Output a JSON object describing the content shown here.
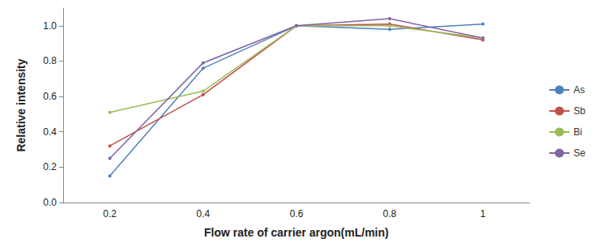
{
  "chart_data": {
    "type": "line",
    "x_label": "Flow rate of carrier argon(mL/min)",
    "y_label": "Relative intensity",
    "categories": [
      "0.2",
      "0.4",
      "0.6",
      "0.8",
      "1"
    ],
    "series": [
      {
        "name": "As",
        "color": "#4f81bd",
        "values": [
          0.15,
          0.76,
          1.0,
          0.98,
          1.01
        ]
      },
      {
        "name": "Sb",
        "color": "#c0504d",
        "values": [
          0.32,
          0.61,
          1.0,
          1.01,
          0.92
        ]
      },
      {
        "name": "Bi",
        "color": "#9bbb59",
        "values": [
          0.51,
          0.63,
          1.0,
          1.0,
          0.93
        ]
      },
      {
        "name": "Se",
        "color": "#8064a2",
        "values": [
          0.25,
          0.79,
          1.0,
          1.04,
          0.93
        ]
      }
    ],
    "ylim": [
      0,
      1.1
    ],
    "yticks": [
      {
        "value": 0,
        "label": "0.0"
      },
      {
        "value": 0.2,
        "label": "0.2"
      },
      {
        "value": 0.4,
        "label": "0.4"
      },
      {
        "value": 0.6,
        "label": "0.6"
      },
      {
        "value": 0.8,
        "label": "0.8"
      },
      {
        "value": 1.0,
        "label": "1.0"
      }
    ],
    "grid": false,
    "legend": "right",
    "marker": "circle"
  }
}
